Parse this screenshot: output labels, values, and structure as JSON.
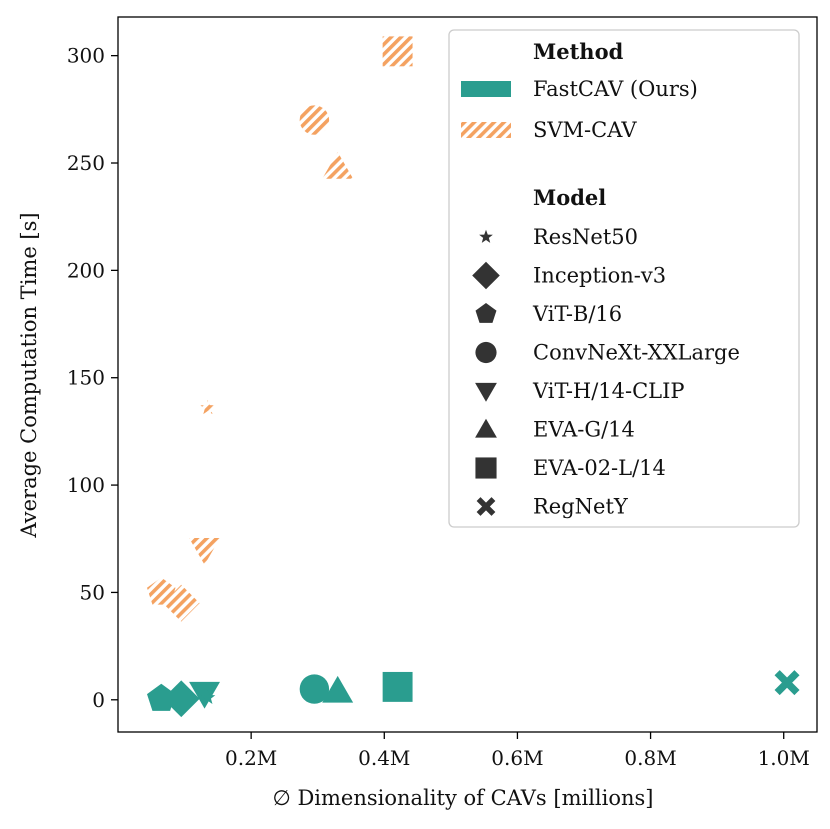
{
  "chart_data": {
    "type": "scatter",
    "xlabel": "∅ Dimensionality of CAVs [millions]",
    "ylabel": "Average Computation Time [s]",
    "xlim": [
      0.0,
      1.05
    ],
    "ylim": [
      -15,
      318
    ],
    "x_ticks": [
      0.2,
      0.4,
      0.6,
      0.8,
      1.0
    ],
    "x_tick_labels": [
      "0.2M",
      "0.4M",
      "0.6M",
      "0.8M",
      "1.0M"
    ],
    "y_ticks": [
      0,
      50,
      100,
      150,
      200,
      250,
      300
    ],
    "y_tick_labels": [
      "0",
      "50",
      "100",
      "150",
      "200",
      "250",
      "300"
    ],
    "grid": false,
    "legend_position": "top-right",
    "colors": {
      "fastcav": "#2a9d8f",
      "svmcav": "#f4a261",
      "marker_legend": "#333333"
    },
    "legend": {
      "method_title": "Method",
      "methods": [
        {
          "key": "fastcav",
          "label": "FastCAV (Ours)"
        },
        {
          "key": "svmcav",
          "label": "SVM-CAV"
        }
      ],
      "model_title": "Model",
      "models": [
        {
          "label": "ResNet50",
          "marker": "star"
        },
        {
          "label": "Inception-v3",
          "marker": "diamond"
        },
        {
          "label": "ViT-B/16",
          "marker": "pentagon"
        },
        {
          "label": "ConvNeXt-XXLarge",
          "marker": "circle"
        },
        {
          "label": "ViT-H/14-CLIP",
          "marker": "triangle-down"
        },
        {
          "label": "EVA-G/14",
          "marker": "triangle-up"
        },
        {
          "label": "EVA-02-L/14",
          "marker": "square"
        },
        {
          "label": "RegNetY",
          "marker": "x"
        }
      ]
    },
    "series": [
      {
        "name": "SVM-CAV",
        "key": "svmcav",
        "points": [
          {
            "model": "ViT-B/16",
            "marker": "pentagon",
            "x": 0.065,
            "y": 50
          },
          {
            "model": "Inception-v3",
            "marker": "diamond",
            "x": 0.095,
            "y": 45
          },
          {
            "model": "ViT-H/14-CLIP",
            "marker": "triangle-down",
            "x": 0.13,
            "y": 70
          },
          {
            "model": "ResNet50",
            "marker": "star",
            "x": 0.135,
            "y": 136
          },
          {
            "model": "ConvNeXt-XXLarge",
            "marker": "circle",
            "x": 0.295,
            "y": 270
          },
          {
            "model": "EVA-G/14",
            "marker": "triangle-up",
            "x": 0.33,
            "y": 248
          },
          {
            "model": "EVA-02-L/14",
            "marker": "square",
            "x": 0.42,
            "y": 302
          }
        ]
      },
      {
        "name": "FastCAV (Ours)",
        "key": "fastcav",
        "points": [
          {
            "model": "ViT-B/16",
            "marker": "pentagon",
            "x": 0.065,
            "y": 0.5
          },
          {
            "model": "Inception-v3",
            "marker": "diamond",
            "x": 0.095,
            "y": 0.5
          },
          {
            "model": "ViT-H/14-CLIP",
            "marker": "triangle-down",
            "x": 0.13,
            "y": 3
          },
          {
            "model": "ResNet50",
            "marker": "star",
            "x": 0.135,
            "y": 1
          },
          {
            "model": "ConvNeXt-XXLarge",
            "marker": "circle",
            "x": 0.295,
            "y": 5
          },
          {
            "model": "EVA-G/14",
            "marker": "triangle-up",
            "x": 0.33,
            "y": 4
          },
          {
            "model": "EVA-02-L/14",
            "marker": "square",
            "x": 0.42,
            "y": 6
          },
          {
            "model": "RegNetY",
            "marker": "x",
            "x": 1.005,
            "y": 8
          }
        ]
      }
    ]
  }
}
